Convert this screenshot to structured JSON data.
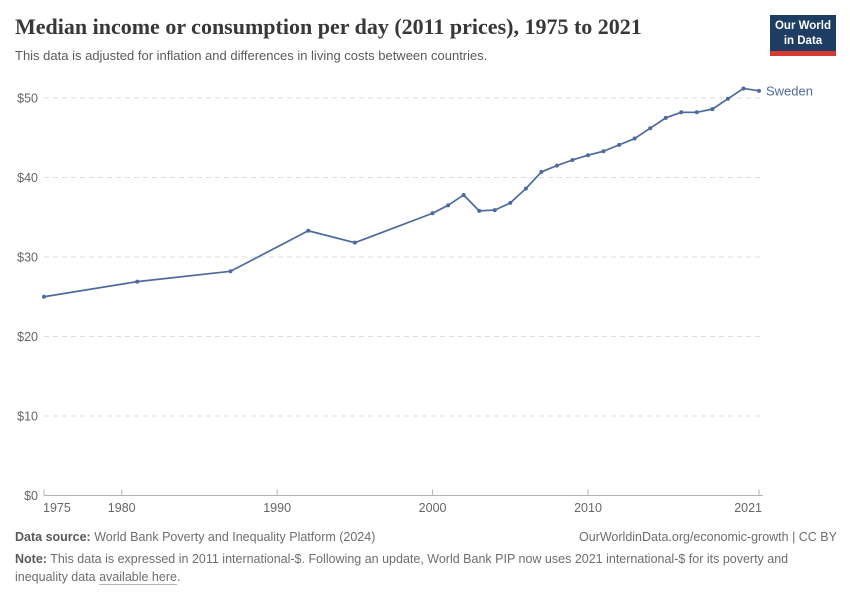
{
  "header": {
    "title": "Median income or consumption per day (2011 prices), 1975 to 2021",
    "subtitle": "This data is adjusted for inflation and differences in living costs between countries.",
    "logo": {
      "line1": "Our World",
      "line2": "in Data"
    }
  },
  "colors": {
    "logo_bg": "#1d3d63",
    "logo_underline": "#d73a34",
    "line": "#4c6a9e",
    "axis_text": "#666666",
    "gridline": "#dedede",
    "axis_line": "#b3b3b3"
  },
  "chart_data": {
    "type": "line",
    "title": "Median income or consumption per day (2011 prices), 1975 to 2021",
    "xlabel": "",
    "ylabel": "",
    "xlim": [
      1975,
      2021
    ],
    "ylim": [
      0,
      52.3
    ],
    "x_ticks": [
      1975,
      1980,
      1990,
      2000,
      2010,
      2021
    ],
    "y_ticks": [
      0,
      10,
      20,
      30,
      40,
      50
    ],
    "y_tick_prefix": "$",
    "grid": "horizontal-dashed",
    "legend_position": "end-of-line-label",
    "line_color": "#4c6a9e",
    "series": [
      {
        "name": "Sweden",
        "x": [
          1975,
          1981,
          1987,
          1992,
          1995,
          2000,
          2001,
          2002,
          2003,
          2004,
          2005,
          2006,
          2007,
          2008,
          2009,
          2010,
          2011,
          2012,
          2013,
          2014,
          2015,
          2016,
          2017,
          2018,
          2019,
          2020,
          2021
        ],
        "values": [
          25.0,
          26.9,
          28.2,
          33.3,
          31.8,
          35.5,
          36.5,
          37.8,
          35.8,
          35.9,
          36.8,
          38.6,
          40.7,
          41.5,
          42.2,
          42.8,
          43.3,
          44.1,
          44.9,
          46.2,
          47.5,
          48.2,
          48.2,
          48.6,
          49.9,
          51.2,
          50.9
        ]
      }
    ]
  },
  "footer": {
    "source_label": "Data source:",
    "source_value": "World Bank Poverty and Inequality Platform (2024)",
    "attribution": "OurWorldinData.org/economic-growth | CC BY",
    "note_label": "Note:",
    "note_line1": "This data is expressed in 2011 international-$. Following an update, World Bank PIP now uses 2021 international-$ for its poverty and",
    "note_line2": "inequality data",
    "note_link": "available here",
    "note_after_link": "."
  }
}
